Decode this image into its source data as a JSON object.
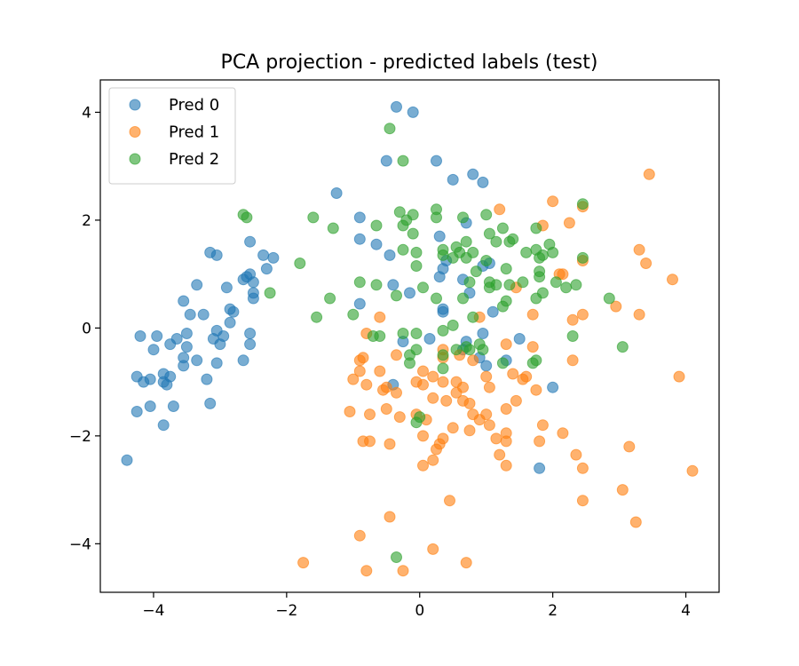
{
  "chart_data": {
    "type": "scatter",
    "title": "PCA projection - predicted labels (test)",
    "xlabel": "",
    "ylabel": "",
    "xlim": [
      -4.8,
      4.5
    ],
    "ylim": [
      -4.9,
      4.6
    ],
    "xticks": [
      -4,
      -2,
      0,
      2,
      4
    ],
    "yticks": [
      -4,
      -2,
      0,
      2,
      4
    ],
    "xtick_labels": [
      "−4",
      "−2",
      "0",
      "2",
      "4"
    ],
    "ytick_labels": [
      "−4",
      "−2",
      "0",
      "2",
      "4"
    ],
    "grid": false,
    "legend_position": "upper-left",
    "series": [
      {
        "name": "Pred 0",
        "color": "#1f77b4",
        "points": [
          [
            -0.35,
            4.1
          ],
          [
            -0.1,
            4.0
          ],
          [
            -0.5,
            3.1
          ],
          [
            0.25,
            3.1
          ],
          [
            0.8,
            2.85
          ],
          [
            0.5,
            2.75
          ],
          [
            0.95,
            2.7
          ],
          [
            -1.25,
            2.5
          ],
          [
            -0.9,
            2.05
          ],
          [
            0.7,
            1.95
          ],
          [
            -0.9,
            1.65
          ],
          [
            -0.65,
            1.55
          ],
          [
            -0.45,
            1.35
          ],
          [
            0.3,
            1.7
          ],
          [
            0.95,
            1.15
          ],
          [
            1.05,
            1.2
          ],
          [
            0.4,
            1.25
          ],
          [
            0.35,
            1.1
          ],
          [
            0.65,
            0.9
          ],
          [
            0.3,
            0.95
          ],
          [
            -0.4,
            0.8
          ],
          [
            -0.15,
            0.65
          ],
          [
            0.75,
            0.65
          ],
          [
            -0.9,
            0.45
          ],
          [
            0.35,
            0.35
          ],
          [
            0.35,
            0.3
          ],
          [
            1.1,
            0.3
          ],
          [
            0.95,
            -0.1
          ],
          [
            0.15,
            -0.2
          ],
          [
            0.7,
            -0.25
          ],
          [
            0.65,
            -0.4
          ],
          [
            1.5,
            -0.2
          ],
          [
            -0.25,
            -0.25
          ],
          [
            0.9,
            -0.55
          ],
          [
            1.0,
            -0.7
          ],
          [
            1.3,
            -0.6
          ],
          [
            -0.4,
            -1.05
          ],
          [
            2.0,
            -1.1
          ],
          [
            1.8,
            -2.6
          ],
          [
            -2.55,
            1.6
          ],
          [
            -2.2,
            1.3
          ],
          [
            -2.35,
            1.35
          ],
          [
            -2.3,
            1.1
          ],
          [
            -3.15,
            1.4
          ],
          [
            -3.05,
            1.35
          ],
          [
            -2.55,
            1.0
          ],
          [
            -2.6,
            0.95
          ],
          [
            -2.65,
            0.9
          ],
          [
            -2.5,
            0.85
          ],
          [
            -2.9,
            0.75
          ],
          [
            -2.5,
            0.65
          ],
          [
            -3.35,
            0.8
          ],
          [
            -2.5,
            0.55
          ],
          [
            -3.55,
            0.5
          ],
          [
            -2.85,
            0.35
          ],
          [
            -2.8,
            0.3
          ],
          [
            -3.45,
            0.25
          ],
          [
            -3.25,
            0.25
          ],
          [
            -2.85,
            0.1
          ],
          [
            -3.05,
            -0.05
          ],
          [
            -3.5,
            -0.1
          ],
          [
            -3.95,
            -0.15
          ],
          [
            -4.2,
            -0.15
          ],
          [
            -3.65,
            -0.2
          ],
          [
            -3.1,
            -0.2
          ],
          [
            -2.95,
            -0.15
          ],
          [
            -2.55,
            -0.1
          ],
          [
            -3.75,
            -0.3
          ],
          [
            -3.5,
            -0.35
          ],
          [
            -3.0,
            -0.3
          ],
          [
            -2.55,
            -0.3
          ],
          [
            -4.0,
            -0.4
          ],
          [
            -3.55,
            -0.55
          ],
          [
            -3.35,
            -0.6
          ],
          [
            -3.05,
            -0.65
          ],
          [
            -3.55,
            -0.7
          ],
          [
            -2.65,
            -0.6
          ],
          [
            -4.25,
            -0.9
          ],
          [
            -3.85,
            -0.85
          ],
          [
            -3.75,
            -0.9
          ],
          [
            -4.05,
            -0.95
          ],
          [
            -4.15,
            -1.0
          ],
          [
            -3.85,
            -1.0
          ],
          [
            -3.8,
            -1.05
          ],
          [
            -3.2,
            -0.95
          ],
          [
            -3.15,
            -1.4
          ],
          [
            -3.7,
            -1.45
          ],
          [
            -4.05,
            -1.45
          ],
          [
            -4.25,
            -1.55
          ],
          [
            -3.85,
            -1.8
          ],
          [
            -4.4,
            -2.45
          ]
        ]
      },
      {
        "name": "Pred 1",
        "color": "#ff7f0e",
        "points": [
          [
            3.45,
            2.85
          ],
          [
            2.0,
            2.35
          ],
          [
            1.2,
            2.2
          ],
          [
            2.45,
            2.25
          ],
          [
            1.85,
            1.9
          ],
          [
            2.25,
            1.95
          ],
          [
            2.45,
            1.25
          ],
          [
            2.1,
            1.0
          ],
          [
            2.15,
            1.0
          ],
          [
            3.3,
            1.45
          ],
          [
            3.4,
            1.2
          ],
          [
            3.8,
            0.9
          ],
          [
            1.45,
            0.75
          ],
          [
            2.95,
            0.4
          ],
          [
            3.3,
            0.25
          ],
          [
            2.45,
            0.25
          ],
          [
            2.3,
            0.15
          ],
          [
            1.7,
            0.25
          ],
          [
            0.9,
            0.2
          ],
          [
            -0.6,
            0.2
          ],
          [
            1.3,
            -0.3
          ],
          [
            1.7,
            -0.35
          ],
          [
            2.3,
            -0.6
          ],
          [
            1.4,
            -0.85
          ],
          [
            1.55,
            -0.95
          ],
          [
            1.6,
            -0.9
          ],
          [
            1.0,
            -0.9
          ],
          [
            0.6,
            -0.5
          ],
          [
            0.35,
            -0.4
          ],
          [
            0.35,
            -0.55
          ],
          [
            0.8,
            -0.6
          ],
          [
            -0.8,
            -0.1
          ],
          [
            -0.85,
            -0.55
          ],
          [
            -0.9,
            -0.6
          ],
          [
            -0.35,
            -0.5
          ],
          [
            -0.6,
            -0.8
          ],
          [
            -0.9,
            -0.8
          ],
          [
            -1.0,
            -0.95
          ],
          [
            -0.8,
            -1.05
          ],
          [
            -0.5,
            -1.1
          ],
          [
            -0.55,
            -1.15
          ],
          [
            -0.35,
            -1.2
          ],
          [
            -0.05,
            -1.0
          ],
          [
            0.05,
            -1.05
          ],
          [
            0.2,
            -0.9
          ],
          [
            0.05,
            -0.8
          ],
          [
            0.35,
            -1.0
          ],
          [
            0.55,
            -1.0
          ],
          [
            0.65,
            -1.1
          ],
          [
            0.55,
            -1.2
          ],
          [
            0.75,
            -1.4
          ],
          [
            0.65,
            -1.35
          ],
          [
            0.4,
            -1.35
          ],
          [
            0.2,
            -1.3
          ],
          [
            0.8,
            -1.6
          ],
          [
            0.9,
            -1.7
          ],
          [
            1.05,
            -1.8
          ],
          [
            1.0,
            -1.6
          ],
          [
            1.3,
            -1.5
          ],
          [
            1.45,
            -1.35
          ],
          [
            1.05,
            -1.1
          ],
          [
            1.75,
            -1.15
          ],
          [
            -1.05,
            -1.55
          ],
          [
            -0.75,
            -1.6
          ],
          [
            -0.5,
            -1.5
          ],
          [
            -0.3,
            -1.65
          ],
          [
            -0.05,
            -1.6
          ],
          [
            0.1,
            -1.7
          ],
          [
            0.5,
            -1.85
          ],
          [
            0.75,
            -1.9
          ],
          [
            1.3,
            -1.95
          ],
          [
            1.15,
            -2.05
          ],
          [
            -0.75,
            -2.1
          ],
          [
            -0.45,
            -2.15
          ],
          [
            -0.85,
            -2.1
          ],
          [
            0.05,
            -2.0
          ],
          [
            0.35,
            -2.05
          ],
          [
            0.3,
            -2.15
          ],
          [
            0.25,
            -2.25
          ],
          [
            1.3,
            -2.1
          ],
          [
            1.85,
            -1.8
          ],
          [
            1.8,
            -2.1
          ],
          [
            2.15,
            -1.95
          ],
          [
            1.2,
            -2.35
          ],
          [
            1.3,
            -2.55
          ],
          [
            0.05,
            -2.55
          ],
          [
            0.2,
            -2.45
          ],
          [
            2.35,
            -2.35
          ],
          [
            2.45,
            -2.6
          ],
          [
            3.15,
            -2.2
          ],
          [
            4.1,
            -2.65
          ],
          [
            3.05,
            -3.0
          ],
          [
            2.45,
            -3.2
          ],
          [
            0.45,
            -3.2
          ],
          [
            -0.45,
            -3.5
          ],
          [
            3.25,
            -3.6
          ],
          [
            -0.9,
            -3.85
          ],
          [
            0.2,
            -4.1
          ],
          [
            -1.75,
            -4.35
          ],
          [
            -0.8,
            -4.5
          ],
          [
            -0.25,
            -4.5
          ],
          [
            0.7,
            -4.35
          ],
          [
            3.9,
            -0.9
          ]
        ]
      },
      {
        "name": "Pred 2",
        "color": "#2ca02c",
        "points": [
          [
            -0.45,
            3.7
          ],
          [
            -0.25,
            3.1
          ],
          [
            2.45,
            2.3
          ],
          [
            -2.65,
            2.1
          ],
          [
            -2.6,
            2.05
          ],
          [
            -1.6,
            2.05
          ],
          [
            -1.3,
            1.85
          ],
          [
            -0.65,
            1.9
          ],
          [
            -0.3,
            2.15
          ],
          [
            -0.2,
            2.0
          ],
          [
            -0.1,
            2.1
          ],
          [
            0.25,
            2.2
          ],
          [
            0.25,
            2.05
          ],
          [
            0.65,
            2.05
          ],
          [
            1.0,
            2.1
          ],
          [
            1.25,
            1.85
          ],
          [
            1.75,
            1.85
          ],
          [
            -0.25,
            1.9
          ],
          [
            -0.1,
            1.75
          ],
          [
            0.35,
            1.45
          ],
          [
            0.35,
            1.35
          ],
          [
            0.55,
            1.5
          ],
          [
            0.6,
            1.4
          ],
          [
            0.7,
            1.6
          ],
          [
            0.8,
            1.4
          ],
          [
            1.05,
            1.75
          ],
          [
            1.15,
            1.6
          ],
          [
            1.35,
            1.6
          ],
          [
            1.4,
            1.65
          ],
          [
            1.6,
            1.4
          ],
          [
            1.75,
            1.45
          ],
          [
            1.95,
            1.55
          ],
          [
            2.0,
            1.4
          ],
          [
            2.45,
            1.3
          ],
          [
            -0.25,
            1.45
          ],
          [
            -0.05,
            1.4
          ],
          [
            -0.05,
            1.15
          ],
          [
            0.5,
            1.3
          ],
          [
            0.7,
            1.3
          ],
          [
            0.85,
            1.05
          ],
          [
            1.0,
            1.25
          ],
          [
            1.3,
            1.1
          ],
          [
            1.8,
            1.3
          ],
          [
            1.85,
            1.35
          ],
          [
            1.8,
            1.05
          ],
          [
            1.8,
            0.95
          ],
          [
            2.05,
            0.85
          ],
          [
            2.2,
            0.75
          ],
          [
            2.35,
            0.8
          ],
          [
            1.85,
            0.65
          ],
          [
            1.75,
            0.55
          ],
          [
            -1.8,
            1.2
          ],
          [
            -0.65,
            0.8
          ],
          [
            -0.35,
            0.6
          ],
          [
            -0.9,
            0.85
          ],
          [
            -1.35,
            0.55
          ],
          [
            -2.25,
            0.65
          ],
          [
            -1.55,
            0.2
          ],
          [
            -1.0,
            0.25
          ],
          [
            0.05,
            0.75
          ],
          [
            0.25,
            0.55
          ],
          [
            0.75,
            0.85
          ],
          [
            1.05,
            0.75
          ],
          [
            1.05,
            0.85
          ],
          [
            1.15,
            0.8
          ],
          [
            1.35,
            0.8
          ],
          [
            1.55,
            0.85
          ],
          [
            1.3,
            0.5
          ],
          [
            1.25,
            0.4
          ],
          [
            0.65,
            0.55
          ],
          [
            0.8,
            0.2
          ],
          [
            0.5,
            0.05
          ],
          [
            0.35,
            -0.05
          ],
          [
            -0.05,
            -0.1
          ],
          [
            -0.25,
            -0.1
          ],
          [
            -0.6,
            -0.15
          ],
          [
            -0.7,
            -0.15
          ],
          [
            -0.15,
            -0.5
          ],
          [
            -0.05,
            -0.4
          ],
          [
            0.35,
            -0.5
          ],
          [
            0.55,
            -0.4
          ],
          [
            0.7,
            -0.35
          ],
          [
            0.75,
            -0.4
          ],
          [
            0.9,
            -0.3
          ],
          [
            0.95,
            -0.4
          ],
          [
            0.35,
            -0.75
          ],
          [
            -0.15,
            -0.65
          ],
          [
            1.25,
            -0.65
          ],
          [
            1.7,
            -0.65
          ],
          [
            1.75,
            -0.6
          ],
          [
            2.3,
            -0.15
          ],
          [
            2.85,
            0.55
          ],
          [
            3.05,
            -0.35
          ],
          [
            0.0,
            -1.65
          ],
          [
            -0.05,
            -1.75
          ],
          [
            -0.35,
            -4.25
          ]
        ]
      }
    ]
  }
}
